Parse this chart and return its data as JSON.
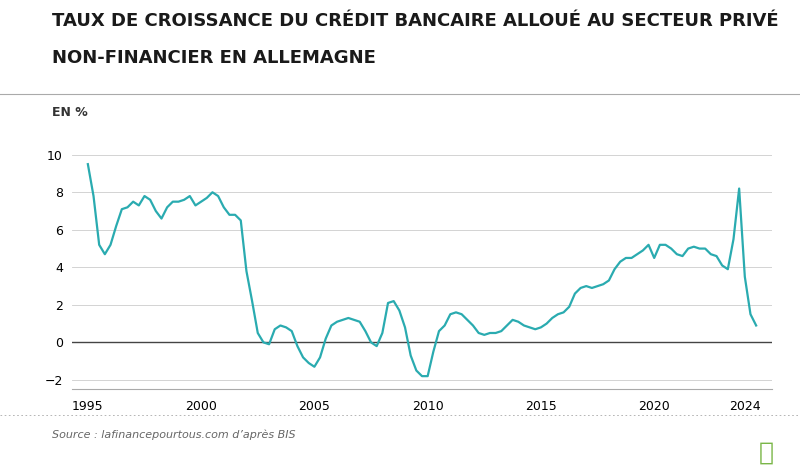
{
  "title_line1": "TAUX DE CROISSANCE DU CRÉDIT BANCAIRE ALLOUÉ AU SECTEUR PRIVÉ",
  "title_line2": "NON-FINANCIER EN ALLEMAGNE",
  "ylabel": "EN %",
  "source": "Source : lafinancepourtous.com d’après BIS",
  "line_color": "#2AABB0",
  "background_color": "#FFFFFF",
  "grid_color": "#CCCCCC",
  "zero_line_color": "#444444",
  "ylim": [
    -2.5,
    10.5
  ],
  "yticks": [
    -2,
    0,
    2,
    4,
    6,
    8,
    10
  ],
  "xticks": [
    1995,
    2000,
    2005,
    2010,
    2015,
    2020,
    2024
  ],
  "xlim": [
    1994.3,
    2025.2
  ],
  "data": {
    "x": [
      1995.0,
      1995.25,
      1995.5,
      1995.75,
      1996.0,
      1996.25,
      1996.5,
      1996.75,
      1997.0,
      1997.25,
      1997.5,
      1997.75,
      1998.0,
      1998.25,
      1998.5,
      1998.75,
      1999.0,
      1999.25,
      1999.5,
      1999.75,
      2000.0,
      2000.25,
      2000.5,
      2000.75,
      2001.0,
      2001.25,
      2001.5,
      2001.75,
      2002.0,
      2002.25,
      2002.5,
      2002.75,
      2003.0,
      2003.25,
      2003.5,
      2003.75,
      2004.0,
      2004.25,
      2004.5,
      2004.75,
      2005.0,
      2005.25,
      2005.5,
      2005.75,
      2006.0,
      2006.25,
      2006.5,
      2006.75,
      2007.0,
      2007.25,
      2007.5,
      2007.75,
      2008.0,
      2008.25,
      2008.5,
      2008.75,
      2009.0,
      2009.25,
      2009.5,
      2009.75,
      2010.0,
      2010.25,
      2010.5,
      2010.75,
      2011.0,
      2011.25,
      2011.5,
      2011.75,
      2012.0,
      2012.25,
      2012.5,
      2012.75,
      2013.0,
      2013.25,
      2013.5,
      2013.75,
      2014.0,
      2014.25,
      2014.5,
      2014.75,
      2015.0,
      2015.25,
      2015.5,
      2015.75,
      2016.0,
      2016.25,
      2016.5,
      2016.75,
      2017.0,
      2017.25,
      2017.5,
      2017.75,
      2018.0,
      2018.25,
      2018.5,
      2018.75,
      2019.0,
      2019.25,
      2019.5,
      2019.75,
      2020.0,
      2020.25,
      2020.5,
      2020.75,
      2021.0,
      2021.25,
      2021.5,
      2021.75,
      2022.0,
      2022.25,
      2022.5,
      2022.75,
      2023.0,
      2023.25,
      2023.5,
      2023.75,
      2024.0,
      2024.25,
      2024.5
    ],
    "y": [
      9.5,
      7.8,
      5.2,
      4.7,
      5.2,
      6.2,
      7.1,
      7.2,
      7.5,
      7.3,
      7.8,
      7.6,
      7.0,
      6.6,
      7.2,
      7.5,
      7.5,
      7.6,
      7.8,
      7.3,
      7.5,
      7.7,
      8.0,
      7.8,
      7.2,
      6.8,
      6.8,
      6.5,
      3.8,
      2.2,
      0.5,
      0.0,
      -0.1,
      0.7,
      0.9,
      0.8,
      0.6,
      -0.2,
      -0.8,
      -1.1,
      -1.3,
      -0.8,
      0.2,
      0.9,
      1.1,
      1.2,
      1.3,
      1.2,
      1.1,
      0.6,
      0.0,
      -0.2,
      0.5,
      2.1,
      2.2,
      1.7,
      0.8,
      -0.7,
      -1.5,
      -1.8,
      -1.8,
      -0.5,
      0.6,
      0.9,
      1.5,
      1.6,
      1.5,
      1.2,
      0.9,
      0.5,
      0.4,
      0.5,
      0.5,
      0.6,
      0.9,
      1.2,
      1.1,
      0.9,
      0.8,
      0.7,
      0.8,
      1.0,
      1.3,
      1.5,
      1.6,
      1.9,
      2.6,
      2.9,
      3.0,
      2.9,
      3.0,
      3.1,
      3.3,
      3.9,
      4.3,
      4.5,
      4.5,
      4.7,
      4.9,
      5.2,
      4.5,
      5.2,
      5.2,
      5.0,
      4.7,
      4.6,
      5.0,
      5.1,
      5.0,
      5.0,
      4.7,
      4.6,
      4.1,
      3.9,
      5.5,
      8.2,
      3.5,
      1.5,
      0.9
    ]
  }
}
